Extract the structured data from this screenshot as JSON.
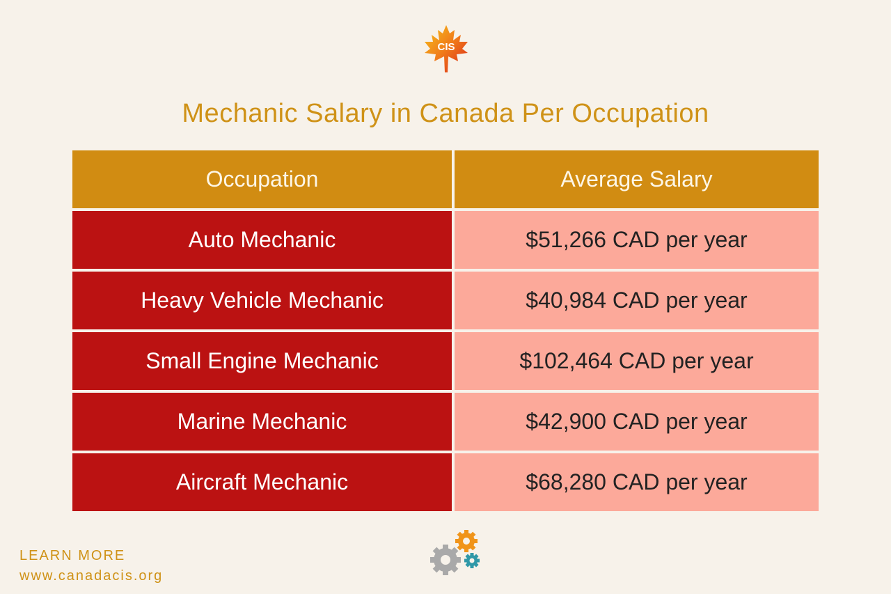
{
  "logo": {
    "text": "CIS",
    "icon": "maple-leaf-icon"
  },
  "title": "Mechanic Salary in Canada Per Occupation",
  "table": {
    "headers": [
      "Occupation",
      "Average Salary"
    ],
    "rows": [
      {
        "occupation": "Auto Mechanic",
        "salary": "$51,266 CAD per year"
      },
      {
        "occupation": "Heavy Vehicle Mechanic",
        "salary": "$40,984 CAD per year"
      },
      {
        "occupation": "Small Engine Mechanic",
        "salary": "$102,464 CAD per year"
      },
      {
        "occupation": "Marine Mechanic",
        "salary": "$42,900 CAD per year"
      },
      {
        "occupation": "Aircraft Mechanic",
        "salary": "$68,280 CAD per year"
      }
    ]
  },
  "footer": {
    "learn_more": "LEARN MORE",
    "url": "www.canadacis.org",
    "icon": "gears-icon"
  },
  "colors": {
    "background": "#f7f2ea",
    "accent": "#cf9217",
    "header": "#d18c12",
    "occupation_cell": "#bb1212",
    "salary_cell": "#fca99a"
  }
}
